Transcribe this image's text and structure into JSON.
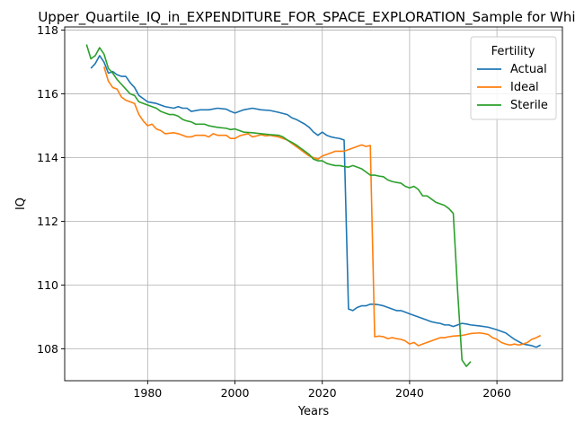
{
  "chart_data": {
    "type": "line",
    "title": "Upper_Quartile_IQ_in_EXPENDITURE_FOR_SPACE_EXPLORATION_Sample for White",
    "xlabel": "Years",
    "ylabel": "IQ",
    "xlim": [
      1961,
      2075
    ],
    "ylim": [
      107.0,
      118.1
    ],
    "xticks": [
      1980,
      2000,
      2020,
      2040,
      2060
    ],
    "yticks": [
      108,
      110,
      112,
      114,
      116,
      118
    ],
    "grid": true,
    "legend": {
      "title": "Fertility",
      "placement": "top-right"
    },
    "series": [
      {
        "name": "Actual",
        "color": "#1f77b4",
        "points": [
          [
            1967,
            116.8
          ],
          [
            1968,
            116.95
          ],
          [
            1969,
            117.2
          ],
          [
            1970,
            117.0
          ],
          [
            1971,
            116.65
          ],
          [
            1972,
            116.7
          ],
          [
            1973,
            116.6
          ],
          [
            1974,
            116.55
          ],
          [
            1975,
            116.55
          ],
          [
            1976,
            116.35
          ],
          [
            1977,
            116.2
          ],
          [
            1978,
            115.95
          ],
          [
            1980,
            115.75
          ],
          [
            1982,
            115.7
          ],
          [
            1984,
            115.6
          ],
          [
            1986,
            115.55
          ],
          [
            1987,
            115.6
          ],
          [
            1988,
            115.55
          ],
          [
            1989,
            115.55
          ],
          [
            1990,
            115.45
          ],
          [
            1992,
            115.5
          ],
          [
            1994,
            115.5
          ],
          [
            1996,
            115.55
          ],
          [
            1998,
            115.52
          ],
          [
            1999,
            115.45
          ],
          [
            2000,
            115.4
          ],
          [
            2002,
            115.5
          ],
          [
            2004,
            115.55
          ],
          [
            2006,
            115.5
          ],
          [
            2008,
            115.48
          ],
          [
            2010,
            115.42
          ],
          [
            2012,
            115.35
          ],
          [
            2013,
            115.25
          ],
          [
            2014,
            115.2
          ],
          [
            2016,
            115.05
          ],
          [
            2017,
            114.95
          ],
          [
            2018,
            114.8
          ],
          [
            2019,
            114.7
          ],
          [
            2020,
            114.8
          ],
          [
            2021,
            114.7
          ],
          [
            2022,
            114.65
          ],
          [
            2023,
            114.62
          ],
          [
            2024,
            114.6
          ],
          [
            2025,
            114.55
          ],
          [
            2026,
            109.25
          ],
          [
            2027,
            109.2
          ],
          [
            2028,
            109.3
          ],
          [
            2029,
            109.35
          ],
          [
            2030,
            109.35
          ],
          [
            2031,
            109.4
          ],
          [
            2032,
            109.4
          ],
          [
            2033,
            109.38
          ],
          [
            2034,
            109.35
          ],
          [
            2035,
            109.3
          ],
          [
            2036,
            109.25
          ],
          [
            2037,
            109.2
          ],
          [
            2038,
            109.2
          ],
          [
            2039,
            109.15
          ],
          [
            2040,
            109.1
          ],
          [
            2041,
            109.05
          ],
          [
            2042,
            109.0
          ],
          [
            2043,
            108.95
          ],
          [
            2044,
            108.9
          ],
          [
            2045,
            108.85
          ],
          [
            2046,
            108.82
          ],
          [
            2047,
            108.8
          ],
          [
            2048,
            108.75
          ],
          [
            2049,
            108.75
          ],
          [
            2050,
            108.7
          ],
          [
            2051,
            108.75
          ],
          [
            2052,
            108.8
          ],
          [
            2053,
            108.78
          ],
          [
            2054,
            108.75
          ],
          [
            2056,
            108.72
          ],
          [
            2058,
            108.68
          ],
          [
            2060,
            108.6
          ],
          [
            2062,
            108.5
          ],
          [
            2064,
            108.3
          ],
          [
            2066,
            108.15
          ],
          [
            2068,
            108.1
          ],
          [
            2069,
            108.05
          ],
          [
            2070,
            108.12
          ]
        ]
      },
      {
        "name": "Ideal",
        "color": "#ff7f0e",
        "points": [
          [
            1970,
            116.85
          ],
          [
            1971,
            116.4
          ],
          [
            1972,
            116.2
          ],
          [
            1973,
            116.15
          ],
          [
            1974,
            115.9
          ],
          [
            1975,
            115.8
          ],
          [
            1976,
            115.75
          ],
          [
            1977,
            115.7
          ],
          [
            1978,
            115.35
          ],
          [
            1979,
            115.15
          ],
          [
            1980,
            115.0
          ],
          [
            1981,
            115.05
          ],
          [
            1982,
            114.9
          ],
          [
            1983,
            114.85
          ],
          [
            1984,
            114.75
          ],
          [
            1986,
            114.78
          ],
          [
            1987,
            114.75
          ],
          [
            1988,
            114.7
          ],
          [
            1989,
            114.65
          ],
          [
            1990,
            114.65
          ],
          [
            1991,
            114.7
          ],
          [
            1993,
            114.7
          ],
          [
            1994,
            114.65
          ],
          [
            1995,
            114.75
          ],
          [
            1996,
            114.7
          ],
          [
            1998,
            114.7
          ],
          [
            1999,
            114.6
          ],
          [
            2000,
            114.6
          ],
          [
            2001,
            114.68
          ],
          [
            2002,
            114.72
          ],
          [
            2003,
            114.75
          ],
          [
            2004,
            114.65
          ],
          [
            2005,
            114.68
          ],
          [
            2006,
            114.72
          ],
          [
            2007,
            114.68
          ],
          [
            2008,
            114.7
          ],
          [
            2010,
            114.65
          ],
          [
            2011,
            114.6
          ],
          [
            2012,
            114.55
          ],
          [
            2013,
            114.45
          ],
          [
            2014,
            114.35
          ],
          [
            2015,
            114.25
          ],
          [
            2016,
            114.15
          ],
          [
            2017,
            114.05
          ],
          [
            2018,
            114.0
          ],
          [
            2019,
            113.95
          ],
          [
            2020,
            114.05
          ],
          [
            2021,
            114.1
          ],
          [
            2022,
            114.15
          ],
          [
            2023,
            114.2
          ],
          [
            2024,
            114.2
          ],
          [
            2025,
            114.2
          ],
          [
            2026,
            114.25
          ],
          [
            2027,
            114.3
          ],
          [
            2028,
            114.35
          ],
          [
            2029,
            114.4
          ],
          [
            2030,
            114.35
          ],
          [
            2031,
            114.38
          ],
          [
            2032,
            108.38
          ],
          [
            2033,
            108.4
          ],
          [
            2034,
            108.38
          ],
          [
            2035,
            108.32
          ],
          [
            2036,
            108.35
          ],
          [
            2037,
            108.32
          ],
          [
            2038,
            108.3
          ],
          [
            2039,
            108.25
          ],
          [
            2040,
            108.15
          ],
          [
            2041,
            108.2
          ],
          [
            2042,
            108.1
          ],
          [
            2043,
            108.15
          ],
          [
            2044,
            108.2
          ],
          [
            2045,
            108.25
          ],
          [
            2046,
            108.3
          ],
          [
            2047,
            108.35
          ],
          [
            2048,
            108.35
          ],
          [
            2049,
            108.38
          ],
          [
            2050,
            108.4
          ],
          [
            2052,
            108.42
          ],
          [
            2054,
            108.48
          ],
          [
            2056,
            108.5
          ],
          [
            2057,
            108.48
          ],
          [
            2058,
            108.45
          ],
          [
            2059,
            108.35
          ],
          [
            2060,
            108.3
          ],
          [
            2061,
            108.2
          ],
          [
            2062,
            108.15
          ],
          [
            2063,
            108.12
          ],
          [
            2064,
            108.15
          ],
          [
            2065,
            108.12
          ],
          [
            2066,
            108.15
          ],
          [
            2067,
            108.2
          ],
          [
            2068,
            108.3
          ],
          [
            2069,
            108.35
          ],
          [
            2070,
            108.42
          ]
        ]
      },
      {
        "name": "Sterile",
        "color": "#2ca02c",
        "points": [
          [
            1966,
            117.55
          ],
          [
            1967,
            117.1
          ],
          [
            1968,
            117.2
          ],
          [
            1969,
            117.45
          ],
          [
            1970,
            117.25
          ],
          [
            1971,
            116.8
          ],
          [
            1972,
            116.65
          ],
          [
            1973,
            116.45
          ],
          [
            1974,
            116.3
          ],
          [
            1975,
            116.15
          ],
          [
            1976,
            116.0
          ],
          [
            1977,
            115.95
          ],
          [
            1978,
            115.75
          ],
          [
            1980,
            115.65
          ],
          [
            1982,
            115.55
          ],
          [
            1983,
            115.45
          ],
          [
            1984,
            115.4
          ],
          [
            1985,
            115.35
          ],
          [
            1986,
            115.35
          ],
          [
            1987,
            115.3
          ],
          [
            1988,
            115.2
          ],
          [
            1989,
            115.15
          ],
          [
            1990,
            115.12
          ],
          [
            1991,
            115.05
          ],
          [
            1992,
            115.05
          ],
          [
            1993,
            115.05
          ],
          [
            1994,
            115.0
          ],
          [
            1996,
            114.95
          ],
          [
            1998,
            114.92
          ],
          [
            1999,
            114.88
          ],
          [
            2000,
            114.9
          ],
          [
            2001,
            114.85
          ],
          [
            2002,
            114.8
          ],
          [
            2004,
            114.78
          ],
          [
            2006,
            114.75
          ],
          [
            2008,
            114.72
          ],
          [
            2010,
            114.7
          ],
          [
            2011,
            114.65
          ],
          [
            2012,
            114.55
          ],
          [
            2013,
            114.48
          ],
          [
            2014,
            114.4
          ],
          [
            2015,
            114.3
          ],
          [
            2016,
            114.2
          ],
          [
            2017,
            114.1
          ],
          [
            2018,
            113.95
          ],
          [
            2019,
            113.9
          ],
          [
            2020,
            113.9
          ],
          [
            2021,
            113.82
          ],
          [
            2022,
            113.78
          ],
          [
            2023,
            113.75
          ],
          [
            2024,
            113.75
          ],
          [
            2025,
            113.72
          ],
          [
            2026,
            113.7
          ],
          [
            2027,
            113.75
          ],
          [
            2028,
            113.7
          ],
          [
            2029,
            113.65
          ],
          [
            2030,
            113.55
          ],
          [
            2031,
            113.45
          ],
          [
            2032,
            113.45
          ],
          [
            2033,
            113.42
          ],
          [
            2034,
            113.4
          ],
          [
            2035,
            113.3
          ],
          [
            2036,
            113.25
          ],
          [
            2037,
            113.22
          ],
          [
            2038,
            113.2
          ],
          [
            2039,
            113.1
          ],
          [
            2040,
            113.05
          ],
          [
            2041,
            113.1
          ],
          [
            2042,
            113.0
          ],
          [
            2043,
            112.8
          ],
          [
            2044,
            112.8
          ],
          [
            2045,
            112.7
          ],
          [
            2046,
            112.6
          ],
          [
            2047,
            112.55
          ],
          [
            2048,
            112.5
          ],
          [
            2049,
            112.4
          ],
          [
            2050,
            112.25
          ],
          [
            2051,
            109.8
          ],
          [
            2052,
            107.65
          ],
          [
            2053,
            107.45
          ],
          [
            2054,
            107.6
          ]
        ]
      }
    ]
  }
}
